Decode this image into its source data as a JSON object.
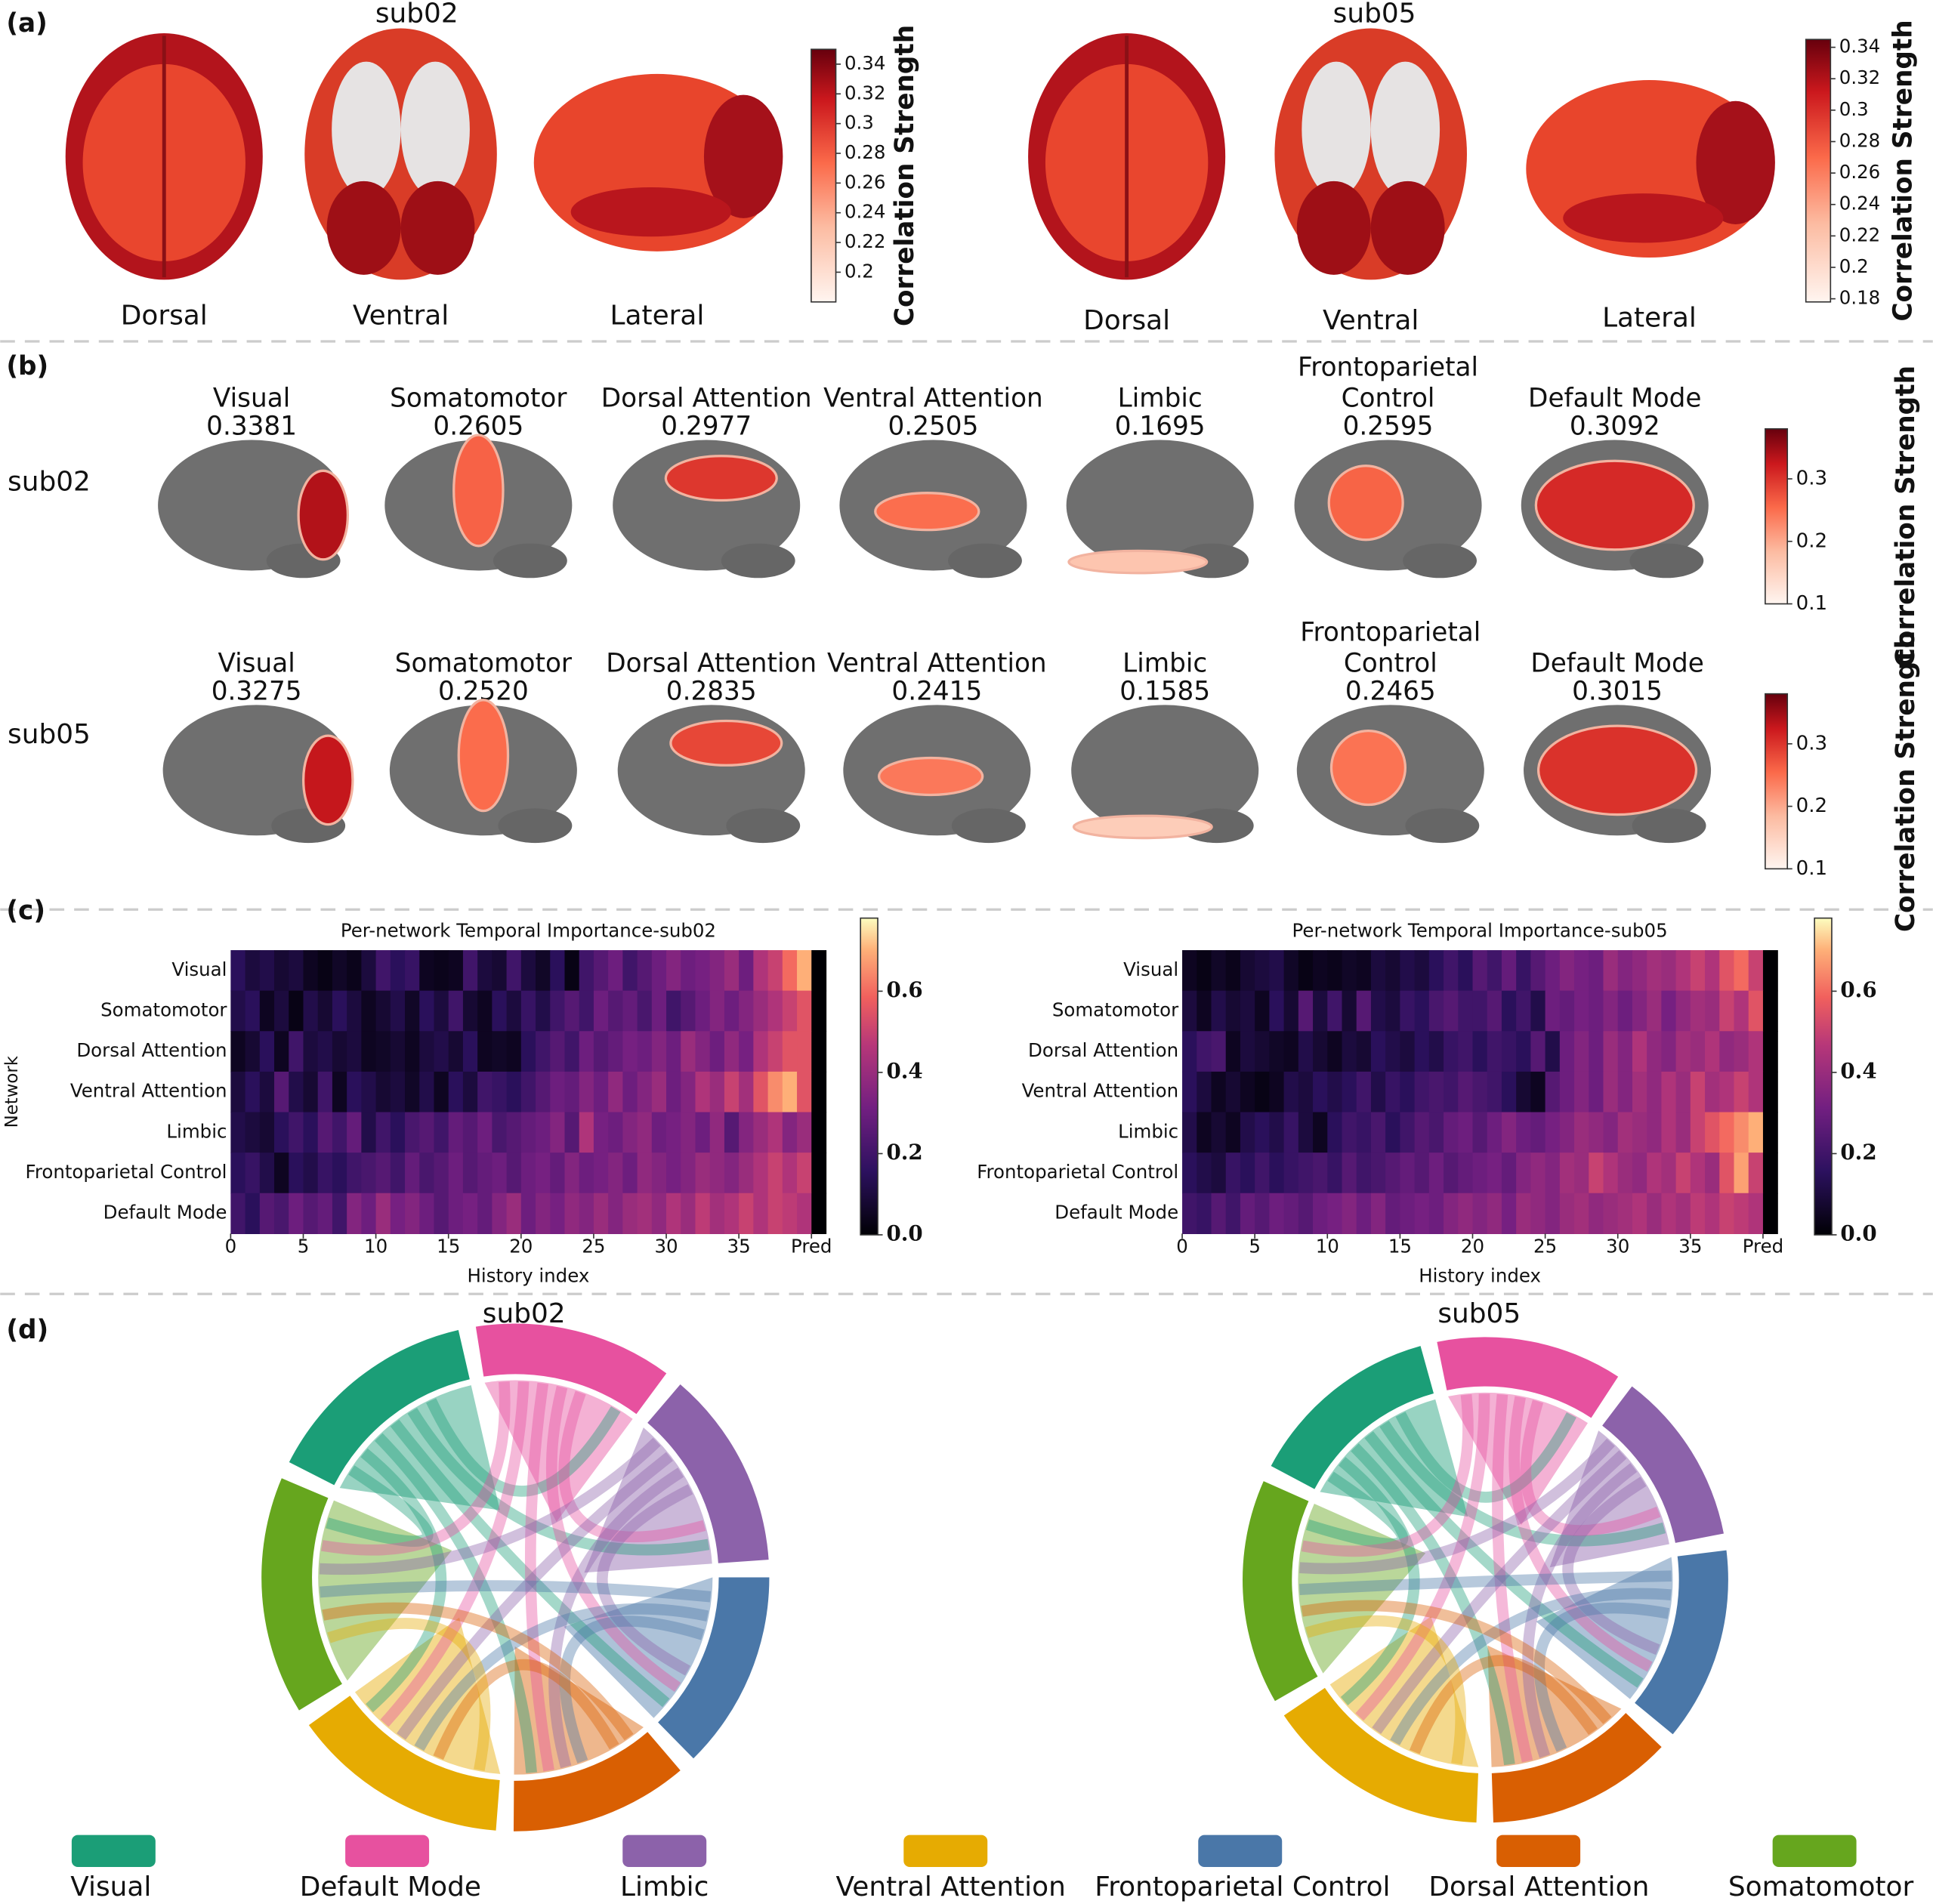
{
  "panel_a": {
    "label": "(a)",
    "subjects": [
      {
        "title": "sub02",
        "views": [
          "Dorsal",
          "Ventral",
          "Lateral"
        ],
        "colorbar": {
          "label": "Correlation Strength",
          "lim": [
            0.18,
            0.35
          ],
          "ticks": [
            0.2,
            0.22,
            0.24,
            0.26,
            0.28,
            0.3,
            0.32,
            0.34
          ]
        }
      },
      {
        "title": "sub05",
        "views": [
          "Dorsal",
          "Ventral",
          "Lateral"
        ],
        "colorbar": {
          "label": "Correlation Strength",
          "lim": [
            0.178,
            0.345
          ],
          "ticks": [
            0.18,
            0.2,
            0.22,
            0.24,
            0.26,
            0.28,
            0.3,
            0.32,
            0.34
          ]
        }
      }
    ]
  },
  "panel_b": {
    "label": "(b)",
    "rows": [
      {
        "subject": "sub02",
        "networks": [
          "Visual",
          "Somatomotor",
          "Dorsal Attention",
          "Ventral Attention",
          "Limbic",
          "Frontoparietal Control",
          "Default Mode"
        ],
        "values": [
          0.3381,
          0.2605,
          0.2977,
          0.2505,
          0.1695,
          0.2595,
          0.3092
        ],
        "value_labels": [
          "0.3381",
          "0.2605",
          "0.2977",
          "0.2505",
          "0.1695",
          "0.2595",
          "0.3092"
        ],
        "colorbar": {
          "label": "Correlation Strength",
          "lim": [
            0.1,
            0.38
          ],
          "ticks": [
            0.1,
            0.2,
            0.3
          ]
        }
      },
      {
        "subject": "sub05",
        "networks": [
          "Visual",
          "Somatomotor",
          "Dorsal Attention",
          "Ventral Attention",
          "Limbic",
          "Frontoparietal Control",
          "Default Mode"
        ],
        "values": [
          0.3275,
          0.252,
          0.2835,
          0.2415,
          0.1585,
          0.2465,
          0.3015
        ],
        "value_labels": [
          "0.3275",
          "0.2520",
          "0.2835",
          "0.2415",
          "0.1585",
          "0.2465",
          "0.3015"
        ],
        "colorbar": {
          "label": "Correlation Strength",
          "lim": [
            0.1,
            0.38
          ],
          "ticks": [
            0.1,
            0.2,
            0.3
          ]
        }
      }
    ]
  },
  "panel_c": {
    "label": "(c)",
    "charts": [
      {
        "type": "heatmap",
        "title": "Per-network Temporal Importance-sub02",
        "ylabel": "Network",
        "xlabel": "History index",
        "rows": [
          "Visual",
          "Somatomotor",
          "Dorsal Attention",
          "Ventral Attention",
          "Limbic",
          "Frontoparietal Control",
          "Default Mode"
        ],
        "xlim": [
          0,
          41
        ],
        "xticks": [
          0,
          5,
          10,
          15,
          20,
          25,
          30,
          35,
          {
            "value": 40,
            "label": "Pred"
          }
        ],
        "clim": [
          0,
          0.78
        ],
        "cticks": [
          {
            "value": 0,
            "label": "0.0"
          },
          0.2,
          0.4,
          0.6
        ],
        "values": [
          [
            0.15,
            0.1,
            0.12,
            0.08,
            0.1,
            0.05,
            0.03,
            0.06,
            0.04,
            0.1,
            0.2,
            0.15,
            0.18,
            0.05,
            0.04,
            0.05,
            0.2,
            0.1,
            0.08,
            0.2,
            0.1,
            0.06,
            0.15,
            0.03,
            0.2,
            0.25,
            0.3,
            0.2,
            0.25,
            0.3,
            0.35,
            0.3,
            0.32,
            0.35,
            0.4,
            0.3,
            0.45,
            0.5,
            0.6,
            0.7,
            0
          ],
          [
            0.12,
            0.15,
            0.05,
            0.1,
            0.03,
            0.12,
            0.08,
            0.15,
            0.1,
            0.05,
            0.08,
            0.12,
            0.06,
            0.15,
            0.1,
            0.2,
            0.08,
            0.05,
            0.15,
            0.1,
            0.18,
            0.12,
            0.2,
            0.25,
            0.2,
            0.3,
            0.25,
            0.28,
            0.22,
            0.3,
            0.2,
            0.25,
            0.3,
            0.35,
            0.3,
            0.35,
            0.4,
            0.45,
            0.5,
            0.55,
            0
          ],
          [
            0.05,
            0.08,
            0.15,
            0.05,
            0.2,
            0.1,
            0.12,
            0.08,
            0.1,
            0.05,
            0.06,
            0.08,
            0.05,
            0.1,
            0.12,
            0.08,
            0.15,
            0.05,
            0.06,
            0.05,
            0.15,
            0.2,
            0.25,
            0.2,
            0.3,
            0.25,
            0.28,
            0.32,
            0.3,
            0.35,
            0.3,
            0.4,
            0.35,
            0.3,
            0.38,
            0.32,
            0.45,
            0.5,
            0.55,
            0.55,
            0
          ],
          [
            0.1,
            0.15,
            0.1,
            0.25,
            0.12,
            0.08,
            0.2,
            0.05,
            0.15,
            0.12,
            0.08,
            0.1,
            0.06,
            0.12,
            0.05,
            0.15,
            0.1,
            0.2,
            0.18,
            0.15,
            0.2,
            0.25,
            0.3,
            0.28,
            0.35,
            0.3,
            0.38,
            0.3,
            0.35,
            0.4,
            0.3,
            0.35,
            0.45,
            0.4,
            0.5,
            0.42,
            0.55,
            0.65,
            0.7,
            0.55,
            0
          ],
          [
            0.12,
            0.1,
            0.08,
            0.15,
            0.2,
            0.15,
            0.25,
            0.2,
            0.28,
            0.12,
            0.2,
            0.15,
            0.22,
            0.25,
            0.2,
            0.28,
            0.25,
            0.3,
            0.22,
            0.25,
            0.28,
            0.3,
            0.35,
            0.25,
            0.45,
            0.32,
            0.3,
            0.35,
            0.38,
            0.3,
            0.32,
            0.35,
            0.3,
            0.38,
            0.25,
            0.35,
            0.4,
            0.45,
            0.35,
            0.4,
            0
          ],
          [
            0.15,
            0.18,
            0.12,
            0.05,
            0.15,
            0.12,
            0.18,
            0.15,
            0.2,
            0.22,
            0.25,
            0.2,
            0.28,
            0.22,
            0.25,
            0.3,
            0.25,
            0.28,
            0.3,
            0.25,
            0.3,
            0.32,
            0.28,
            0.35,
            0.3,
            0.32,
            0.35,
            0.3,
            0.38,
            0.35,
            0.32,
            0.35,
            0.4,
            0.38,
            0.35,
            0.4,
            0.45,
            0.5,
            0.45,
            0.5,
            0
          ],
          [
            0.2,
            0.15,
            0.25,
            0.22,
            0.3,
            0.25,
            0.28,
            0.2,
            0.35,
            0.3,
            0.4,
            0.32,
            0.35,
            0.3,
            0.25,
            0.3,
            0.32,
            0.28,
            0.35,
            0.4,
            0.3,
            0.35,
            0.32,
            0.38,
            0.35,
            0.4,
            0.35,
            0.4,
            0.42,
            0.38,
            0.45,
            0.4,
            0.48,
            0.42,
            0.45,
            0.5,
            0.45,
            0.5,
            0.48,
            0.45,
            0
          ]
        ]
      },
      {
        "type": "heatmap",
        "title": "Per-network Temporal Importance-sub05",
        "xlabel": "History index",
        "rows": [
          "Visual",
          "Somatomotor",
          "Dorsal Attention",
          "Ventral Attention",
          "Limbic",
          "Frontoparietal Control",
          "Default Mode"
        ],
        "xlim": [
          0,
          41
        ],
        "xticks": [
          0,
          5,
          10,
          15,
          20,
          25,
          30,
          35,
          {
            "value": 40,
            "label": "Pred"
          }
        ],
        "clim": [
          0,
          0.78
        ],
        "cticks": [
          {
            "value": 0,
            "label": "0.0"
          },
          0.2,
          0.4,
          0.6
        ],
        "values": [
          [
            0.05,
            0.03,
            0.06,
            0.04,
            0.08,
            0.1,
            0.12,
            0.06,
            0.03,
            0.05,
            0.04,
            0.06,
            0.05,
            0.1,
            0.08,
            0.12,
            0.1,
            0.15,
            0.2,
            0.15,
            0.25,
            0.2,
            0.28,
            0.18,
            0.25,
            0.3,
            0.35,
            0.32,
            0.3,
            0.4,
            0.35,
            0.38,
            0.42,
            0.4,
            0.45,
            0.5,
            0.45,
            0.55,
            0.6,
            0.5,
            0
          ],
          [
            0.1,
            0.05,
            0.12,
            0.08,
            0.1,
            0.05,
            0.15,
            0.08,
            0.25,
            0.1,
            0.2,
            0.08,
            0.25,
            0.12,
            0.1,
            0.18,
            0.15,
            0.22,
            0.25,
            0.2,
            0.2,
            0.25,
            0.15,
            0.2,
            0.12,
            0.3,
            0.28,
            0.32,
            0.3,
            0.35,
            0.3,
            0.35,
            0.4,
            0.32,
            0.38,
            0.42,
            0.4,
            0.5,
            0.45,
            0.55,
            0
          ],
          [
            0.15,
            0.2,
            0.22,
            0.05,
            0.1,
            0.08,
            0.06,
            0.05,
            0.12,
            0.08,
            0.05,
            0.1,
            0.08,
            0.15,
            0.12,
            0.1,
            0.15,
            0.12,
            0.18,
            0.2,
            0.15,
            0.2,
            0.18,
            0.15,
            0.25,
            0.12,
            0.3,
            0.35,
            0.3,
            0.4,
            0.35,
            0.45,
            0.38,
            0.35,
            0.42,
            0.4,
            0.45,
            0.38,
            0.4,
            0.45,
            0
          ],
          [
            0.15,
            0.1,
            0.05,
            0.08,
            0.05,
            0.03,
            0.05,
            0.12,
            0.1,
            0.15,
            0.12,
            0.15,
            0.2,
            0.12,
            0.18,
            0.15,
            0.2,
            0.22,
            0.2,
            0.25,
            0.22,
            0.2,
            0.15,
            0.08,
            0.05,
            0.25,
            0.3,
            0.35,
            0.3,
            0.4,
            0.35,
            0.42,
            0.38,
            0.45,
            0.4,
            0.5,
            0.42,
            0.45,
            0.5,
            0.45,
            0
          ],
          [
            0.12,
            0.05,
            0.08,
            0.05,
            0.12,
            0.15,
            0.12,
            0.18,
            0.1,
            0.05,
            0.15,
            0.2,
            0.18,
            0.22,
            0.15,
            0.2,
            0.25,
            0.22,
            0.28,
            0.3,
            0.25,
            0.3,
            0.35,
            0.3,
            0.28,
            0.32,
            0.35,
            0.4,
            0.38,
            0.35,
            0.42,
            0.4,
            0.38,
            0.45,
            0.4,
            0.5,
            0.55,
            0.6,
            0.65,
            0.7,
            0
          ],
          [
            0.15,
            0.12,
            0.1,
            0.18,
            0.15,
            0.2,
            0.15,
            0.18,
            0.2,
            0.22,
            0.18,
            0.25,
            0.2,
            0.22,
            0.25,
            0.28,
            0.25,
            0.3,
            0.25,
            0.28,
            0.3,
            0.32,
            0.28,
            0.35,
            0.38,
            0.35,
            0.42,
            0.4,
            0.5,
            0.45,
            0.4,
            0.38,
            0.45,
            0.42,
            0.5,
            0.45,
            0.4,
            0.55,
            0.68,
            0.5,
            0
          ],
          [
            0.2,
            0.18,
            0.25,
            0.2,
            0.28,
            0.25,
            0.3,
            0.28,
            0.25,
            0.3,
            0.32,
            0.35,
            0.3,
            0.35,
            0.28,
            0.3,
            0.32,
            0.3,
            0.35,
            0.38,
            0.35,
            0.38,
            0.32,
            0.4,
            0.38,
            0.35,
            0.4,
            0.42,
            0.38,
            0.4,
            0.42,
            0.45,
            0.4,
            0.45,
            0.42,
            0.48,
            0.45,
            0.5,
            0.48,
            0.45,
            0
          ]
        ]
      }
    ]
  },
  "panel_d": {
    "label": "(d)",
    "networks": [
      {
        "name": "Visual",
        "color": "#1b9e77"
      },
      {
        "name": "Default Mode",
        "color": "#e7519f"
      },
      {
        "name": "Limbic",
        "color": "#8c62aa"
      },
      {
        "name": "Ventral Attention",
        "color": "#e6ab02"
      },
      {
        "name": "Frontoparietal Control",
        "color": "#4a77a8"
      },
      {
        "name": "Dorsal Attention",
        "color": "#d95f02"
      },
      {
        "name": "Somatomotor",
        "color": "#66a61e"
      }
    ],
    "diagrams": [
      {
        "title": "sub02",
        "sizes": [
          55,
          50,
          50,
          55,
          50,
          45,
          60
        ]
      },
      {
        "title": "sub05",
        "sizes": [
          50,
          48,
          45,
          58,
          50,
          48,
          58
        ]
      }
    ]
  }
}
